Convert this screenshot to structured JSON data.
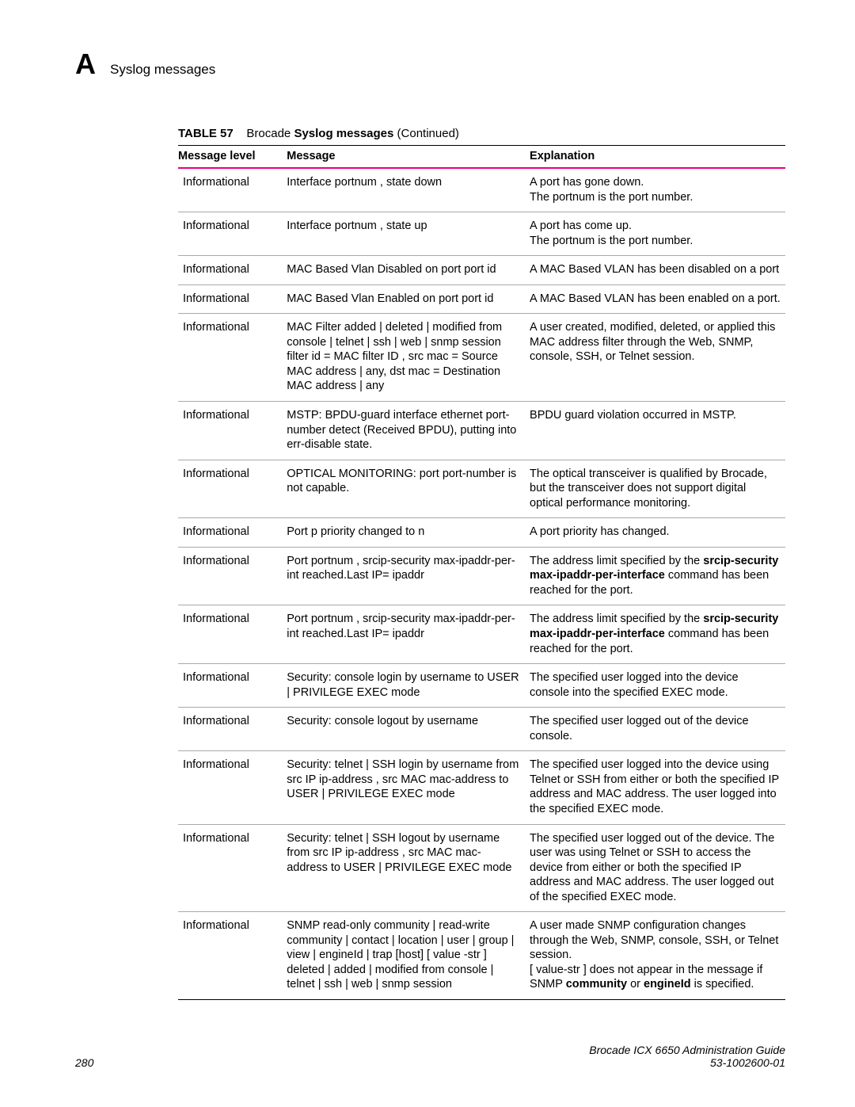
{
  "header": {
    "appendix_letter": "A",
    "title": "Syslog messages"
  },
  "table": {
    "caption_label": "TABLE 57",
    "caption_text_1": "Brocade ",
    "caption_bold": "Syslog messages",
    "caption_text_2": " (Continued)",
    "columns": {
      "level": "Message level",
      "message": "Message",
      "explanation": "Explanation"
    },
    "rows": [
      {
        "level": "Informational",
        "message": "Interface portnum , state down",
        "explanation": "A port has gone down.\nThe  portnum  is the port number."
      },
      {
        "level": "Informational",
        "message": "Interface portnum , state up",
        "explanation": "A port has come up.\nThe  portnum  is the port number."
      },
      {
        "level": "Informational",
        "message": "MAC Based Vlan Disabled on port port id",
        "explanation": "A MAC Based VLAN has been disabled on a port"
      },
      {
        "level": "Informational",
        "message": "MAC Based Vlan Enabled on port port id",
        "explanation": "A MAC Based VLAN has been enabled on a port."
      },
      {
        "level": "Informational",
        "message": "MAC Filter added | deleted | modified from console | telnet | ssh | web | snmp session filter id =  MAC filter ID , src mac =  Source MAC address  | any, dst mac =  Destination MAC address  | any",
        "explanation": "A user created, modified, deleted, or applied this MAC address filter through the Web, SNMP, console, SSH, or Telnet session."
      },
      {
        "level": "Informational",
        "message": "MSTP: BPDU-guard interface ethernet  port-number  detect (Received BPDU), putting into err-disable state.",
        "explanation": "BPDU guard violation occurred in MSTP."
      },
      {
        "level": "Informational",
        "message": "OPTICAL MONITORING: port port-number is not capable.",
        "explanation": "The optical transceiver is qualified by Brocade, but the transceiver does not support digital optical performance monitoring."
      },
      {
        "level": "Informational",
        "message": "Port  p  priority changed to  n",
        "explanation": "A port priority has changed."
      },
      {
        "level": "Informational",
        "message": "Port  portnum , srcip-security max-ipaddr-per-int reached.Last IP= ipaddr",
        "explanation_html": "The address limit specified by the <span class=\"bold\">srcip-security max-ipaddr-per-interface</span> command has been reached for the port."
      },
      {
        "level": "Informational",
        "message": "Port  portnum , srcip-security max-ipaddr-per-int reached.Last IP= ipaddr",
        "explanation_html": "The address limit specified by the <span class=\"bold\">srcip-security max-ipaddr-per-interface</span> command has been reached for the port."
      },
      {
        "level": "Informational",
        "message": "Security: console login by username  to USER | PRIVILEGE EXEC mode",
        "explanation": "The specified user logged into the device console into the specified EXEC mode."
      },
      {
        "level": "Informational",
        "message": "Security: console logout by username",
        "explanation": "The specified user logged out of the device console."
      },
      {
        "level": "Informational",
        "message": "Security: telnet | SSH login by username from src IP  ip-address , src MAC mac-address  to USER | PRIVILEGE EXEC mode",
        "explanation": "The specified user logged into the device using Telnet or SSH from either or both the specified IP address and MAC address. The user logged into the specified EXEC mode."
      },
      {
        "level": "Informational",
        "message": "Security: telnet | SSH logout by username from src IP  ip-address , src MAC mac-address  to USER | PRIVILEGE EXEC mode",
        "explanation": "The specified user logged out of the device. The user was using Telnet or SSH to access the device from either or both the specified IP address and MAC address. The user logged out of the specified EXEC mode."
      },
      {
        "level": "Informational",
        "message": "SNMP read-only community | read-write community | contact | location | user | group | view | engineId | trap [host] [  value -str ] deleted | added | modified from console | telnet | ssh | web | snmp session",
        "explanation_html": "A user made SNMP configuration changes through the Web, SNMP, console, SSH, or Telnet session.<br>[ value-str ] does not appear in the message if SNMP <span class=\"bold\">community</span> or <span class=\"bold\">engineId</span> is specified."
      }
    ]
  },
  "footer": {
    "page_number": "280",
    "guide_title": "Brocade ICX 6650 Administration Guide",
    "doc_number": "53-1002600-01"
  },
  "colors": {
    "header_rule": "#e6007e",
    "row_rule": "#a9a9a9",
    "text": "#000000",
    "background": "#ffffff"
  },
  "typography": {
    "body_font": "Arial, Helvetica, sans-serif",
    "body_size_pt": 11,
    "appendix_letter_size_pt": 28
  }
}
